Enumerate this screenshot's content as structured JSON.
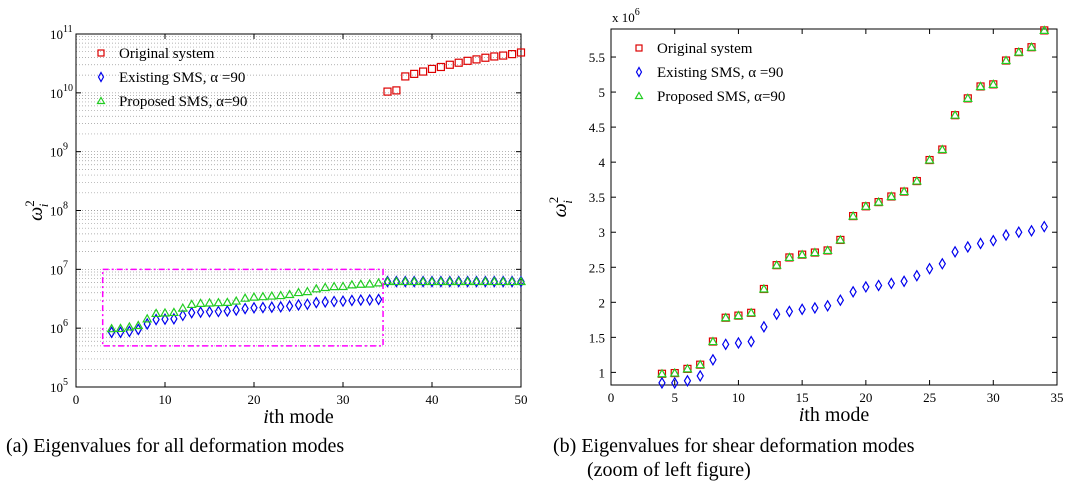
{
  "chart_data": [
    {
      "type": "scatter",
      "panel_caption": "(a)  Eigenvalues for all deformation modes",
      "xlabel": "ith mode",
      "ylabel": "ω_i^2",
      "y_scale": "log",
      "xlim": [
        0,
        50
      ],
      "ylim": [
        100000,
        100000000000
      ],
      "x_ticks": [
        "0",
        "10",
        "20",
        "30",
        "40",
        "50"
      ],
      "y_tick_bases": [
        "10",
        "10",
        "10",
        "10",
        "10",
        "10",
        "10"
      ],
      "y_tick_exps": [
        "5",
        "6",
        "7",
        "8",
        "9",
        "10",
        "11"
      ],
      "grid": "dotted, y-axis major and minor",
      "legend": {
        "placement": "top-left",
        "entries": [
          "Original system",
          "Existing SMS, α =90",
          "Proposed SMS, α=90"
        ]
      },
      "highlight_box": {
        "x": [
          3,
          34.5
        ],
        "y": [
          500000,
          10000000
        ],
        "color": "#ff00ff",
        "style": "dash-dot"
      },
      "series": [
        {
          "name": "Original system",
          "marker": "square",
          "color": "#dd0000",
          "x": [
            35,
            36,
            37,
            38,
            39,
            40,
            41,
            42,
            43,
            44,
            45,
            46,
            47,
            48,
            49,
            50
          ],
          "values": [
            10500000000,
            11000000000,
            19000000000,
            21000000000,
            23000000000,
            25500000000,
            27500000000,
            30000000000,
            32500000000,
            35000000000,
            37000000000,
            39500000000,
            41500000000,
            43000000000,
            45500000000,
            48500000000
          ]
        },
        {
          "name": "Existing SMS, α =90",
          "marker": "diamond",
          "color": "#0000ee",
          "x": [
            4,
            5,
            6,
            7,
            8,
            9,
            10,
            11,
            12,
            13,
            14,
            15,
            16,
            17,
            18,
            19,
            20,
            21,
            22,
            23,
            24,
            25,
            26,
            27,
            28,
            29,
            30,
            31,
            32,
            33,
            34,
            35,
            36,
            37,
            38,
            39,
            40,
            41,
            42,
            43,
            44,
            45,
            46,
            47,
            48,
            49,
            50
          ],
          "values": [
            850000,
            850000,
            880000,
            950000,
            1180000,
            1400000,
            1420000,
            1440000,
            1650000,
            1830000,
            1870000,
            1900000,
            1920000,
            1950000,
            2030000,
            2150000,
            2220000,
            2240000,
            2270000,
            2300000,
            2380000,
            2480000,
            2550000,
            2720000,
            2790000,
            2840000,
            2880000,
            2960000,
            3000000,
            3020000,
            3080000,
            6200000,
            6200000,
            6200000,
            6200000,
            6200000,
            6200000,
            6200000,
            6200000,
            6200000,
            6200000,
            6200000,
            6200000,
            6200000,
            6200000,
            6200000,
            6200000
          ]
        },
        {
          "name": "Proposed SMS, α=90",
          "marker": "triangle",
          "color": "#22cc22",
          "x": [
            4,
            5,
            6,
            7,
            8,
            9,
            10,
            11,
            12,
            13,
            14,
            15,
            16,
            17,
            18,
            19,
            20,
            21,
            22,
            23,
            24,
            25,
            26,
            27,
            28,
            29,
            30,
            31,
            32,
            33,
            34,
            35,
            36,
            37,
            38,
            39,
            40,
            41,
            42,
            43,
            44,
            45,
            46,
            47,
            48,
            49,
            50
          ],
          "values": [
            980000,
            990000,
            1050000,
            1110000,
            1440000,
            1780000,
            1810000,
            1850000,
            2190000,
            2530000,
            2640000,
            2680000,
            2710000,
            2740000,
            2890000,
            3230000,
            3370000,
            3430000,
            3510000,
            3580000,
            3730000,
            4030000,
            4180000,
            4670000,
            4910000,
            5080000,
            5110000,
            5450000,
            5570000,
            5640000,
            5880000,
            6200000,
            6200000,
            6200000,
            6200000,
            6200000,
            6200000,
            6200000,
            6200000,
            6200000,
            6200000,
            6200000,
            6200000,
            6200000,
            6200000,
            6200000,
            6200000
          ]
        }
      ]
    },
    {
      "type": "scatter",
      "panel_caption": "(b)  Eigenvalues for shear deformation modes",
      "panel_caption_line2": "(zoom of left figure)",
      "xlabel": "ith mode",
      "ylabel": "ω_i^2",
      "y_multiplier_base": "x 10",
      "y_multiplier_exp": "6",
      "xlim": [
        0,
        35
      ],
      "ylim": [
        0.82,
        5.9
      ],
      "x_ticks": [
        "0",
        "5",
        "10",
        "15",
        "20",
        "25",
        "30",
        "35"
      ],
      "y_ticks": [
        "1",
        "1.5",
        "2",
        "2.5",
        "3",
        "3.5",
        "4",
        "4.5",
        "5",
        "5.5"
      ],
      "grid": "off",
      "legend": {
        "placement": "top-left",
        "entries": [
          "Original system",
          "Existing SMS, α =90",
          "Proposed SMS, α=90"
        ]
      },
      "series": [
        {
          "name": "Original system",
          "marker": "square",
          "color": "#dd0000",
          "x": [
            4,
            5,
            6,
            7,
            8,
            9,
            10,
            11,
            12,
            13,
            14,
            15,
            16,
            17,
            18,
            19,
            20,
            21,
            22,
            23,
            24,
            25,
            26,
            27,
            28,
            29,
            30,
            31,
            32,
            33,
            34
          ],
          "values": [
            0.98,
            0.99,
            1.05,
            1.11,
            1.44,
            1.78,
            1.81,
            1.85,
            2.19,
            2.53,
            2.64,
            2.68,
            2.71,
            2.74,
            2.89,
            3.23,
            3.37,
            3.43,
            3.51,
            3.58,
            3.73,
            4.03,
            4.18,
            4.67,
            4.91,
            5.08,
            5.11,
            5.45,
            5.57,
            5.64,
            5.88
          ]
        },
        {
          "name": "Existing SMS, α =90",
          "marker": "diamond",
          "color": "#0000ee",
          "x": [
            4,
            5,
            6,
            7,
            8,
            9,
            10,
            11,
            12,
            13,
            14,
            15,
            16,
            17,
            18,
            19,
            20,
            21,
            22,
            23,
            24,
            25,
            26,
            27,
            28,
            29,
            30,
            31,
            32,
            33,
            34
          ],
          "values": [
            0.85,
            0.85,
            0.88,
            0.95,
            1.18,
            1.4,
            1.42,
            1.44,
            1.65,
            1.83,
            1.87,
            1.9,
            1.92,
            1.95,
            2.03,
            2.15,
            2.22,
            2.24,
            2.27,
            2.3,
            2.38,
            2.48,
            2.55,
            2.72,
            2.79,
            2.84,
            2.88,
            2.96,
            3.0,
            3.02,
            3.08
          ]
        },
        {
          "name": "Proposed SMS, α=90",
          "marker": "triangle",
          "color": "#22cc22",
          "x": [
            4,
            5,
            6,
            7,
            8,
            9,
            10,
            11,
            12,
            13,
            14,
            15,
            16,
            17,
            18,
            19,
            20,
            21,
            22,
            23,
            24,
            25,
            26,
            27,
            28,
            29,
            30,
            31,
            32,
            33,
            34
          ],
          "values": [
            0.98,
            0.99,
            1.05,
            1.11,
            1.44,
            1.78,
            1.81,
            1.85,
            2.19,
            2.53,
            2.64,
            2.68,
            2.71,
            2.74,
            2.89,
            3.23,
            3.37,
            3.43,
            3.51,
            3.58,
            3.73,
            4.03,
            4.18,
            4.67,
            4.91,
            5.08,
            5.11,
            5.45,
            5.57,
            5.64,
            5.88
          ]
        }
      ]
    }
  ]
}
